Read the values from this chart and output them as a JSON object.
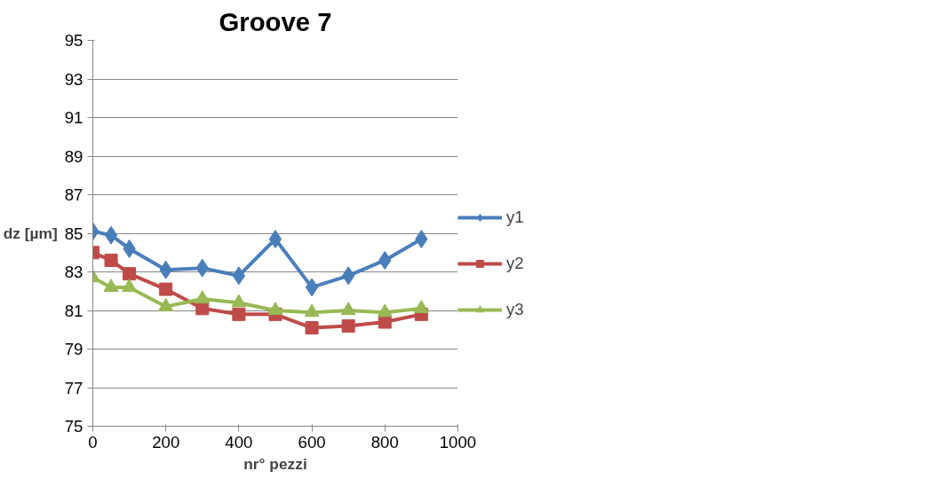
{
  "chart_data": {
    "type": "line",
    "title": "Groove 7",
    "xlabel": "nr° pezzi",
    "ylabel": "dz [µm]",
    "x": [
      0,
      50,
      100,
      200,
      300,
      400,
      500,
      600,
      700,
      800,
      900
    ],
    "series": [
      {
        "name": "y1",
        "color": "#4a7ebb",
        "marker": "diamond",
        "values": [
          85.1,
          84.9,
          84.2,
          83.1,
          83.2,
          82.8,
          84.7,
          82.2,
          82.8,
          83.6,
          84.7
        ]
      },
      {
        "name": "y2",
        "color": "#be4b48",
        "marker": "square",
        "values": [
          84.0,
          83.6,
          82.9,
          82.1,
          81.1,
          80.8,
          80.8,
          80.1,
          80.2,
          80.4,
          80.8
        ]
      },
      {
        "name": "y3",
        "color": "#98b954",
        "marker": "triangle",
        "values": [
          82.7,
          82.2,
          82.2,
          81.2,
          81.6,
          81.4,
          81.0,
          80.9,
          81.0,
          80.9,
          81.1
        ]
      }
    ],
    "xlim": [
      0,
      1000
    ],
    "xticks": [
      0,
      200,
      400,
      600,
      800,
      1000
    ],
    "ylim": [
      75,
      95
    ],
    "yticks": [
      75,
      77,
      79,
      81,
      83,
      85,
      87,
      89,
      91,
      93,
      95
    ],
    "grid": "y",
    "legend": "right",
    "line_style": "solid"
  }
}
